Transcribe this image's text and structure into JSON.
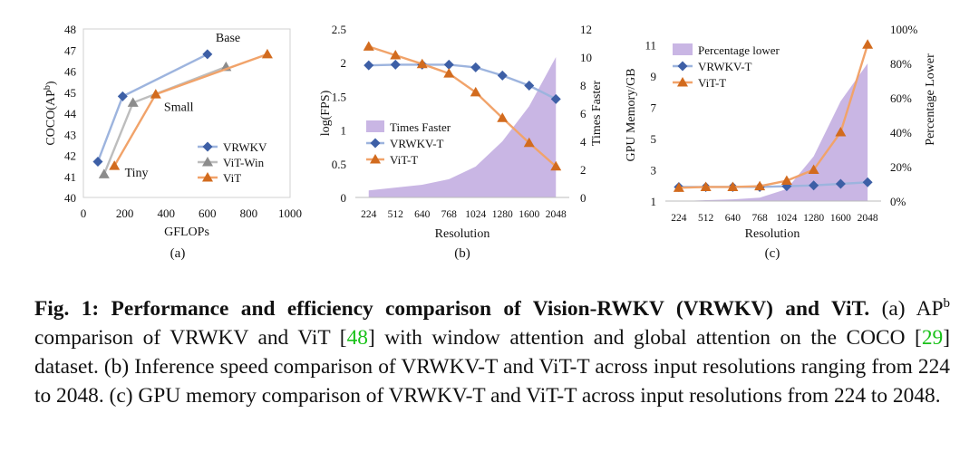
{
  "colors": {
    "vrwkv": "#3d5fa6",
    "vrwkv_line": "#9db4de",
    "vit_win": "#8c8c8c",
    "vit_win_line": "#bdbdbd",
    "vit": "#d26b1e",
    "vit_line": "#f1a36a",
    "fill": "#c9b6e4",
    "cite": "#19c219"
  },
  "chart_data": [
    {
      "type": "line",
      "sublabel": "(a)",
      "xlabel": "GFLOPs",
      "ylabel_main": "COCO(AP",
      "ylabel_sup": "b",
      "ylabel_close": ")",
      "xlim": [
        0,
        1000
      ],
      "ylim": [
        40,
        48
      ],
      "xticks": [
        "0",
        "200",
        "400",
        "600",
        "800",
        "1000"
      ],
      "yticks": [
        "40",
        "41",
        "42",
        "43",
        "44",
        "45",
        "46",
        "47",
        "48"
      ],
      "annotations": [
        {
          "text": "Base",
          "x": 640,
          "y": 47.4
        },
        {
          "text": "Small",
          "x": 390,
          "y": 44.1
        },
        {
          "text": "Tiny",
          "x": 200,
          "y": 41.0
        }
      ],
      "series": [
        {
          "name": "VRWKV",
          "marker": "diamond",
          "x": [
            70,
            190,
            600
          ],
          "y": [
            41.7,
            44.8,
            46.8
          ]
        },
        {
          "name": "ViT-Win",
          "marker": "triangle",
          "x": [
            100,
            240,
            690
          ],
          "y": [
            41.1,
            44.5,
            46.2
          ]
        },
        {
          "name": "ViT",
          "marker": "triangle",
          "x": [
            150,
            350,
            890
          ],
          "y": [
            41.5,
            44.9,
            46.8
          ]
        }
      ]
    },
    {
      "type": "line",
      "sublabel": "(b)",
      "xlabel": "Resolution",
      "ylabel_left": "log(FPS)",
      "ylabel_right": "Times Faster",
      "categories": [
        "224",
        "512",
        "640",
        "768",
        "1024",
        "1280",
        "1600",
        "2048"
      ],
      "ylim_left": [
        0,
        2.5
      ],
      "ylim_right": [
        0,
        12
      ],
      "yticks_left": [
        "0",
        "0.5",
        "1",
        "1.5",
        "2",
        "2.5"
      ],
      "yticks_right": [
        "0",
        "2",
        "4",
        "6",
        "8",
        "10",
        "12"
      ],
      "area": {
        "name": "Times Faster",
        "axis": "right",
        "values": [
          0.5,
          0.7,
          0.9,
          1.3,
          2.2,
          4.0,
          6.5,
          10.0
        ]
      },
      "series": [
        {
          "name": "VRWKV-T",
          "marker": "diamond",
          "values": [
            1.96,
            1.97,
            1.97,
            1.97,
            1.93,
            1.81,
            1.66,
            1.46
          ]
        },
        {
          "name": "ViT-T",
          "marker": "triangle",
          "values": [
            2.24,
            2.11,
            1.98,
            1.84,
            1.56,
            1.18,
            0.81,
            0.46
          ]
        }
      ]
    },
    {
      "type": "line",
      "sublabel": "(c)",
      "xlabel": "Resolution",
      "ylabel_left": "GPU Memory/GB",
      "ylabel_right": "Percentage Lower",
      "categories": [
        "224",
        "512",
        "640",
        "768",
        "1024",
        "1280",
        "1600",
        "2048"
      ],
      "ylim_left": [
        1,
        12
      ],
      "ylim_right": [
        0,
        100
      ],
      "yticks_left": [
        "1",
        "3",
        "5",
        "7",
        "9",
        "11"
      ],
      "yticks_right": [
        "0%",
        "20%",
        "40%",
        "60%",
        "80%",
        "100%"
      ],
      "area": {
        "name": "Percentage lower",
        "axis": "right",
        "values": [
          0,
          0.5,
          1,
          2,
          7,
          26,
          58,
          80
        ]
      },
      "series": [
        {
          "name": "VRWKV-T",
          "marker": "diamond",
          "values": [
            1.9,
            1.9,
            1.9,
            1.9,
            1.95,
            2.0,
            2.1,
            2.2
          ]
        },
        {
          "name": "ViT-T",
          "marker": "triangle",
          "values": [
            1.85,
            1.9,
            1.9,
            1.95,
            2.3,
            3.0,
            5.4,
            11.0
          ]
        }
      ]
    }
  ],
  "caption": {
    "fig_label": "Fig. 1: Performance and efficiency comparison of Vision-RWKV (VRWKV) and ViT.",
    "a_label": "(a) AP",
    "a_sup": "b",
    "a_text1": "comparison of VRWKV and ViT [",
    "cite1": "48",
    "a_text2": "] with window attention and global attention on the COCO [",
    "cite2": "29",
    "a_text3": "] dataset.",
    "b_text": "(b) Inference speed comparison of VRWKV-T and ViT-T across input resolutions ranging from 224 to 2048.",
    "c_text": "(c) GPU memory comparison of VRWKV-T and ViT-T across input resolutions from 224 to 2048."
  }
}
